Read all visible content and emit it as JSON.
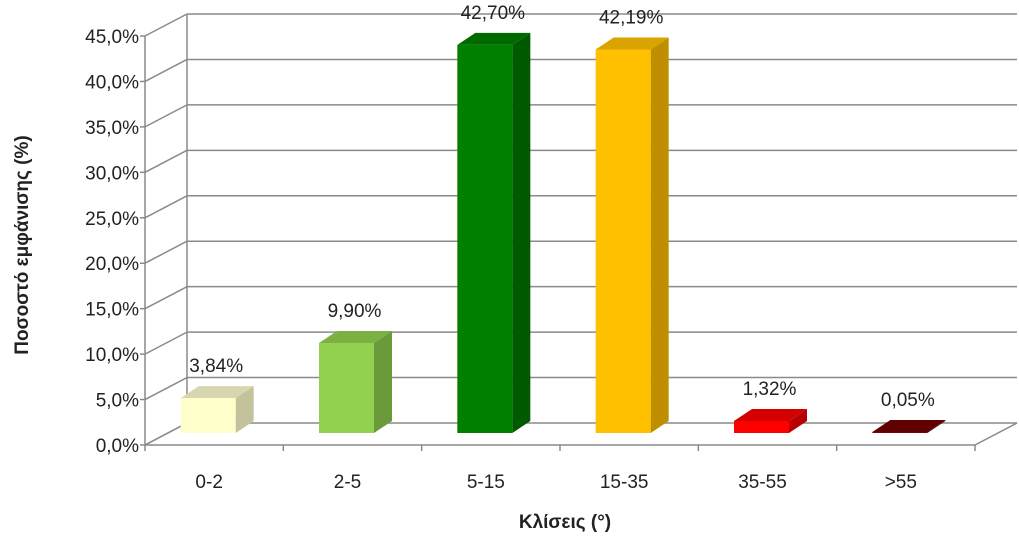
{
  "chart_data": {
    "type": "bar",
    "categories": [
      "0-2",
      "2-5",
      "5-15",
      "15-35",
      "35-55",
      ">55"
    ],
    "values": [
      3.84,
      9.9,
      42.7,
      42.19,
      1.32,
      0.05
    ],
    "data_labels": [
      "3,84%",
      "9,90%",
      "42,70%",
      "42,19%",
      "1,32%",
      "0,05%"
    ],
    "y_ticks": [
      "0,0%",
      "5,0%",
      "10,0%",
      "15,0%",
      "20,0%",
      "25,0%",
      "30,0%",
      "35,0%",
      "40,0%",
      "45,0%"
    ],
    "xlabel": "Κλίσεις (°)",
    "ylabel": "Ποσοστό εμφάνισης (%)",
    "ylim": [
      0,
      45
    ],
    "grid": true,
    "style": "3d-column",
    "colors": [
      "#FFFFCC",
      "#92D050",
      "#008000",
      "#FFC000",
      "#FF0000",
      "#800000"
    ],
    "side_colors": [
      "#C4C29B",
      "#6A9A3A",
      "#005A00",
      "#BF8F00",
      "#B80000",
      "#4A0000"
    ],
    "top_colors": [
      "#D8D6AE",
      "#7DB043",
      "#006A00",
      "#D9A300",
      "#D40000",
      "#600000"
    ]
  }
}
